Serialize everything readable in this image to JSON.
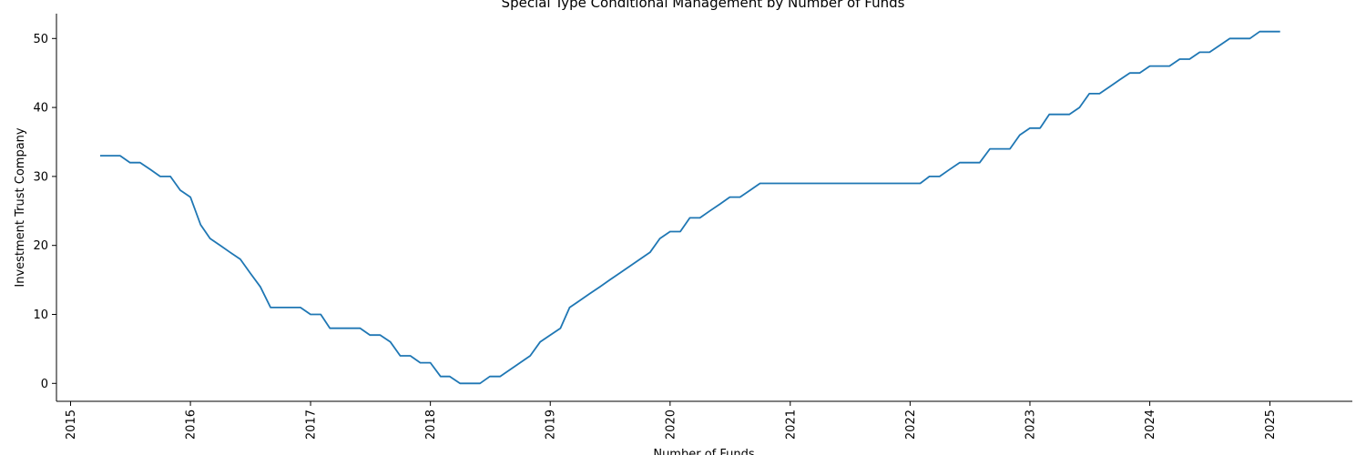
{
  "chart_data": {
    "type": "line",
    "title": "Special Type Conditional Management by Number of Funds",
    "xlabel": "Number of Funds",
    "ylabel": "Investment Trust Company",
    "x_ticks": [
      "2015",
      "2016",
      "2017",
      "2018",
      "2019",
      "2020",
      "2021",
      "2022",
      "2023",
      "2024",
      "2025"
    ],
    "y_ticks": [
      "0",
      "10",
      "20",
      "30",
      "40",
      "50"
    ],
    "ylim": [
      -2.6,
      53.6
    ],
    "xlim": [
      "2014-11-19",
      "2025-09-09"
    ],
    "grid": false,
    "line_color": "#1f77b4",
    "series": [
      {
        "x": [
          "2015-04-01",
          "2015-05-01",
          "2015-06-01",
          "2015-07-01",
          "2015-08-01",
          "2015-09-01",
          "2015-10-01",
          "2015-11-01",
          "2015-12-01",
          "2016-01-01",
          "2016-02-01",
          "2016-03-01",
          "2016-04-01",
          "2016-05-01",
          "2016-06-01",
          "2016-07-01",
          "2016-08-01",
          "2016-09-01",
          "2016-10-01",
          "2016-11-01",
          "2016-12-01",
          "2017-01-01",
          "2017-02-01",
          "2017-03-01",
          "2017-04-01",
          "2017-05-01",
          "2017-06-01",
          "2017-07-01",
          "2017-08-01",
          "2017-09-01",
          "2017-10-01",
          "2017-11-01",
          "2017-12-01",
          "2018-01-01",
          "2018-02-01",
          "2018-03-01",
          "2018-04-01",
          "2018-05-01",
          "2018-06-01",
          "2018-07-01",
          "2018-08-01",
          "2018-09-01",
          "2018-10-01",
          "2018-11-01",
          "2018-12-01",
          "2019-01-01",
          "2019-02-01",
          "2019-03-01",
          "2019-04-01",
          "2019-05-01",
          "2019-06-01",
          "2019-07-01",
          "2019-08-01",
          "2019-09-01",
          "2019-10-01",
          "2019-11-01",
          "2019-12-01",
          "2020-01-01",
          "2020-02-01",
          "2020-03-01",
          "2020-04-01",
          "2020-05-01",
          "2020-06-01",
          "2020-07-01",
          "2020-08-01",
          "2020-09-01",
          "2020-10-01",
          "2020-11-01",
          "2020-12-01",
          "2021-01-01",
          "2021-02-01",
          "2021-03-01",
          "2021-04-01",
          "2021-05-01",
          "2021-06-01",
          "2021-07-01",
          "2021-08-01",
          "2021-09-01",
          "2021-10-01",
          "2021-11-01",
          "2021-12-01",
          "2022-01-01",
          "2022-02-01",
          "2022-03-01",
          "2022-04-01",
          "2022-05-01",
          "2022-06-01",
          "2022-07-01",
          "2022-08-01",
          "2022-09-01",
          "2022-10-01",
          "2022-11-01",
          "2022-12-01",
          "2023-01-01",
          "2023-02-01",
          "2023-03-01",
          "2023-04-01",
          "2023-05-01",
          "2023-06-01",
          "2023-07-01",
          "2023-08-01",
          "2023-09-01",
          "2023-10-01",
          "2023-11-01",
          "2023-12-01",
          "2024-01-01",
          "2024-02-01",
          "2024-03-01",
          "2024-04-01",
          "2024-05-01",
          "2024-06-01",
          "2024-07-01",
          "2024-08-01",
          "2024-09-01",
          "2024-10-01",
          "2024-11-01",
          "2024-12-01",
          "2025-01-01",
          "2025-02-01"
        ],
        "values": [
          33,
          33,
          33,
          32,
          32,
          31,
          30,
          30,
          28,
          27,
          23,
          21,
          20,
          19,
          18,
          16,
          14,
          11,
          11,
          11,
          11,
          10,
          10,
          8,
          8,
          8,
          8,
          7,
          7,
          6,
          4,
          4,
          3,
          3,
          1,
          1,
          0,
          0,
          0,
          1,
          1,
          2,
          3,
          4,
          6,
          7,
          8,
          11,
          12,
          13,
          14,
          15,
          16,
          17,
          18,
          19,
          21,
          22,
          22,
          24,
          24,
          25,
          26,
          27,
          27,
          28,
          29,
          29,
          29,
          29,
          29,
          29,
          29,
          29,
          29,
          29,
          29,
          29,
          29,
          29,
          29,
          29,
          29,
          30,
          30,
          31,
          32,
          32,
          32,
          34,
          34,
          34,
          36,
          37,
          37,
          39,
          39,
          39,
          40,
          42,
          42,
          43,
          44,
          45,
          45,
          46,
          46,
          46,
          47,
          47,
          48,
          48,
          49,
          50,
          50,
          50,
          51,
          51,
          51
        ]
      }
    ]
  }
}
